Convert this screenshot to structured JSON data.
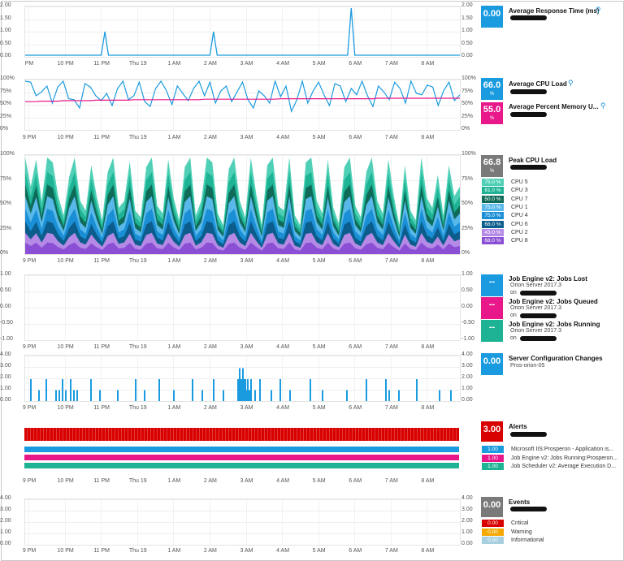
{
  "time_labels": [
    "9 PM",
    "10 PM",
    "11 PM",
    "Thu 19",
    "1 AM",
    "2 AM",
    "3 AM",
    "4 AM",
    "5 AM",
    "6 AM",
    "7 AM",
    "8 AM"
  ],
  "time_labels_alt": [
    "PM",
    "10 PM",
    "11 PM",
    "Thu 19",
    "1 AM",
    "2 AM",
    "3 AM",
    "4 AM",
    "5 AM",
    "6 AM",
    "7 AM",
    "8 AM"
  ],
  "response": {
    "title": "Average Response Time (ms)",
    "value": "0.00",
    "yticks": [
      "2.00",
      "1.50",
      "1.00",
      "0.50",
      "0.00"
    ],
    "color": "#1a9be0",
    "chart_data": {
      "type": "line",
      "ylim": [
        0,
        2
      ],
      "x": [
        0,
        1,
        2,
        3,
        4,
        5,
        6,
        7,
        8,
        9,
        10,
        11,
        12,
        13,
        14,
        15,
        16,
        17,
        18,
        19,
        20,
        21,
        22,
        23,
        24,
        25,
        26,
        27,
        28,
        29,
        30,
        31,
        32,
        33,
        34,
        35,
        36,
        37,
        38,
        39,
        40,
        41,
        42,
        43,
        44,
        45,
        46,
        47,
        48,
        49,
        50,
        51,
        52,
        53,
        54,
        55,
        56,
        57,
        58,
        59,
        60,
        61,
        62,
        63,
        64,
        65,
        66,
        67,
        68,
        69,
        70,
        71,
        72,
        73,
        74,
        75,
        76,
        77,
        78,
        79,
        80,
        81,
        82,
        83,
        84,
        85,
        86,
        87,
        88,
        89,
        90,
        91,
        92,
        93,
        94,
        95,
        96,
        97,
        98,
        99,
        100,
        101,
        102,
        103,
        104,
        105,
        106,
        107,
        108,
        109,
        110,
        111,
        112,
        113,
        114,
        115,
        116,
        117,
        118,
        119,
        120
      ],
      "values": [
        0,
        0,
        0,
        0,
        0,
        0,
        0,
        0,
        0,
        0,
        0,
        0,
        0,
        0,
        0,
        0,
        0,
        0,
        0,
        0,
        0,
        0,
        1,
        0,
        0,
        0,
        0,
        0,
        0,
        0,
        0,
        0,
        0,
        0,
        0,
        0,
        0,
        0,
        0,
        0,
        0,
        0,
        0,
        0,
        0,
        0,
        0,
        0,
        0,
        0,
        0,
        0,
        1,
        0,
        0,
        0,
        0,
        0,
        0,
        0,
        0,
        0,
        0,
        0,
        0,
        0,
        0,
        0,
        0,
        0,
        0,
        0,
        0,
        0,
        0,
        0,
        0,
        0,
        0,
        0,
        0,
        0,
        0,
        0,
        0,
        0,
        0,
        0,
        0,
        0,
        2,
        0,
        0,
        0,
        0,
        0,
        0,
        0,
        0,
        0,
        0,
        0,
        0,
        0,
        0,
        0,
        0,
        0,
        0,
        0,
        0,
        0,
        0,
        0,
        0,
        0,
        0,
        0,
        0,
        0,
        0
      ]
    }
  },
  "cpu": {
    "title1": "Average CPU Load",
    "value1": "66.0",
    "title2": "Average Percent Memory U...",
    "value2": "55.0",
    "unit": "%",
    "yticks": [
      "100%",
      "75%",
      "50%",
      "25%",
      "0%"
    ],
    "cpu_color": "#1a9be0",
    "mem_color": "#e8178a",
    "chart_data": {
      "type": "line",
      "ylim": [
        0,
        100
      ],
      "series": [
        {
          "name": "Average CPU Load",
          "values": [
            100,
            98,
            70,
            78,
            90,
            55,
            88,
            100,
            64,
            62,
            45,
            95,
            88,
            70,
            60,
            75,
            50,
            85,
            100,
            62,
            70,
            98,
            58,
            48,
            85,
            100,
            80,
            52,
            90,
            75,
            60,
            85,
            100,
            70,
            98,
            55,
            80,
            90,
            58,
            78,
            98,
            62,
            45,
            80,
            70,
            55,
            100,
            68,
            90,
            38,
            62,
            100,
            55,
            80,
            98,
            72,
            50,
            95,
            90,
            58,
            85,
            72,
            100,
            70,
            48,
            90,
            78,
            62,
            98,
            85,
            55,
            100,
            75,
            72,
            92,
            88,
            50,
            80,
            98,
            60,
            72
          ]
        },
        {
          "name": "Average Percent Memory U...",
          "values": [
            58,
            58,
            58,
            59,
            59,
            59,
            59,
            60,
            60,
            60,
            60,
            60,
            60,
            61,
            61,
            61,
            61,
            61,
            61,
            61,
            62,
            62,
            62,
            62,
            62,
            62,
            62,
            62,
            62,
            62,
            62,
            62,
            62,
            63,
            63,
            63,
            63,
            63,
            63,
            63,
            63,
            63,
            63,
            63,
            63,
            63,
            63,
            64,
            64,
            64,
            64,
            64,
            64,
            64,
            64,
            64,
            64,
            64,
            64,
            64,
            64,
            64,
            64,
            64,
            64,
            65,
            65,
            65,
            65,
            65,
            65,
            65,
            65,
            65,
            65,
            65,
            65,
            65,
            65,
            65,
            65
          ]
        }
      ]
    }
  },
  "peak": {
    "title": "Peak CPU Load",
    "value": "66.8",
    "unit": "%",
    "yticks": [
      "100%",
      "75%",
      "50%",
      "25%",
      "0%"
    ],
    "legend": [
      {
        "label": "CPU 5",
        "value": "75.0 %",
        "color": "#4fd0b6"
      },
      {
        "label": "CPU 3",
        "value": "81.0 %",
        "color": "#1db394"
      },
      {
        "label": "CPU 7",
        "value": "50.0 %",
        "color": "#0f6b58"
      },
      {
        "label": "CPU 1",
        "value": "75.0 %",
        "color": "#58b8ea"
      },
      {
        "label": "CPU 4",
        "value": "75.0 %",
        "color": "#1a8fd6"
      },
      {
        "label": "CPU 6",
        "value": "68.0 %",
        "color": "#0c5d8c"
      },
      {
        "label": "CPU 2",
        "value": "43.0 %",
        "color": "#b58ae6"
      },
      {
        "label": "CPU 8",
        "value": "68.0 %",
        "color": "#8a4fd4"
      }
    ],
    "chart_data": {
      "type": "area",
      "ylim": [
        0,
        100
      ],
      "total": [
        100,
        70,
        98,
        55,
        100,
        95,
        60,
        40,
        80,
        100,
        55,
        45,
        92,
        60,
        35,
        85,
        100,
        48,
        55,
        96,
        45,
        38,
        90,
        100,
        50,
        42,
        98,
        58,
        35,
        90,
        100,
        40,
        55,
        100,
        95,
        42,
        30,
        88,
        100,
        55,
        38,
        100,
        62,
        30,
        92,
        100,
        50,
        45,
        100,
        40,
        30,
        95,
        100,
        55,
        42,
        98,
        48,
        32,
        90,
        100,
        50,
        38,
        85,
        100,
        55,
        42,
        98,
        60,
        30,
        92,
        45,
        35,
        100,
        58,
        48,
        82,
        40,
        92,
        60,
        70
      ]
    }
  },
  "jobs": {
    "yticks": [
      "1.00",
      "0.50",
      "0.00",
      "-0.50",
      "-1.00"
    ],
    "items": [
      {
        "title": "Job Engine v2: Jobs Lost",
        "value": "--",
        "server": "Orion Server 2017.3",
        "on": "on",
        "color": "#1a9be0"
      },
      {
        "title": "Job Engine v2: Jobs Queued",
        "value": "--",
        "server": "Orion Server 2017.3",
        "on": "on",
        "color": "#e8178a"
      },
      {
        "title": "Job Engine v2: Jobs Running",
        "value": "--",
        "server": "Orion Server 2017.3",
        "on": "on",
        "color": "#1db394"
      }
    ]
  },
  "config": {
    "title": "Server Configuration Changes",
    "value": "0.00",
    "host": "Pros-orion-05",
    "yticks": [
      "4.00",
      "3.00",
      "2.00",
      "1.00",
      "0.00"
    ],
    "color": "#1a9be0",
    "chart_data": {
      "type": "bar",
      "ylim": [
        0,
        4
      ],
      "x": [
        3,
        13,
        22,
        34,
        38,
        42,
        46,
        52,
        56,
        60,
        77,
        88,
        110,
        132,
        143,
        161,
        179,
        202,
        214,
        228,
        240,
        258,
        260,
        262,
        264,
        265,
        267,
        268,
        270,
        272,
        274,
        279,
        285,
        299,
        310,
        322,
        347,
        362,
        392,
        416,
        440,
        444,
        456,
        478,
        506,
        520
      ],
      "values": [
        2,
        1,
        2,
        1,
        1,
        2,
        1,
        2,
        1,
        1,
        2,
        1,
        1,
        2,
        1,
        2,
        1,
        2,
        1,
        2,
        1,
        2,
        3,
        2,
        3,
        2,
        2,
        1,
        2,
        1,
        2,
        1,
        2,
        1,
        2,
        1,
        2,
        1,
        1,
        2,
        2,
        1,
        1,
        2,
        1,
        1
      ]
    }
  },
  "alerts": {
    "title": "Alerts",
    "value": "3.00",
    "items": [
      {
        "label": "Microsoft IIS:Prosperon - Application is...",
        "value": "1.00",
        "color": "#1a9be0"
      },
      {
        "label": "Job Engine v2: Jobs Running:Prosperon...",
        "value": "1.00",
        "color": "#e8178a"
      },
      {
        "label": "Job Scheduler v2: Average Execution D...",
        "value": "1.00",
        "color": "#1db394"
      }
    ],
    "total_color": "#d90000"
  },
  "events": {
    "title": "Events",
    "value": "0.00",
    "yticks": [
      "4.00",
      "3.00",
      "2.00",
      "1.00",
      "0.00"
    ],
    "items": [
      {
        "label": "Critical",
        "value": "0.00",
        "color": "#d90000"
      },
      {
        "label": "Warning",
        "value": "0.00",
        "color": "#f5a800"
      },
      {
        "label": "Informational",
        "value": "0.00",
        "color": "#a8cfe0"
      }
    ]
  }
}
